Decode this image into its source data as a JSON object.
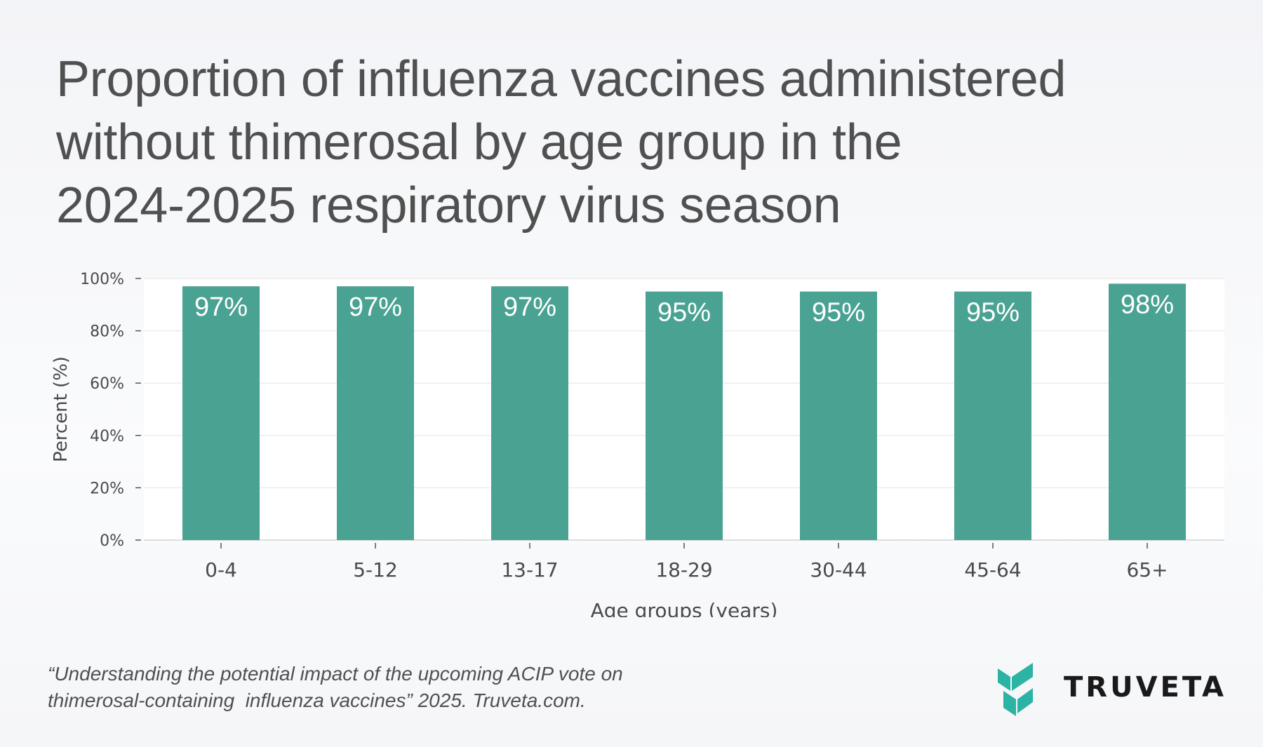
{
  "title_lines": [
    "Proportion of influenza vaccines administered",
    "without thimerosal by age group in the",
    "2024-2025 respiratory virus season"
  ],
  "chart_data": {
    "type": "bar",
    "categories": [
      "0-4",
      "5-12",
      "13-17",
      "18-29",
      "30-44",
      "45-64",
      "65+"
    ],
    "values": [
      97,
      97,
      97,
      95,
      95,
      95,
      98
    ],
    "data_labels": [
      "97%",
      "97%",
      "97%",
      "95%",
      "95%",
      "95%",
      "98%"
    ],
    "xlabel": "Age groups (years)",
    "ylabel": "Percent (%)",
    "ylim": [
      0,
      100
    ],
    "yticks": [
      0,
      20,
      40,
      60,
      80,
      100
    ],
    "ytick_labels": [
      "0%",
      "20%",
      "40%",
      "60%",
      "80%",
      "100%"
    ],
    "grid": true,
    "bar_color": "#4aa293"
  },
  "caption_lines": [
    "“Understanding the potential impact of the upcoming ACIP vote on",
    "thimerosal-containing  influenza vaccines” 2025. Truveta.com."
  ],
  "logo": {
    "text": "TRUVETA",
    "icon": "truveta-logo-icon",
    "color": "#2bb3a4"
  }
}
